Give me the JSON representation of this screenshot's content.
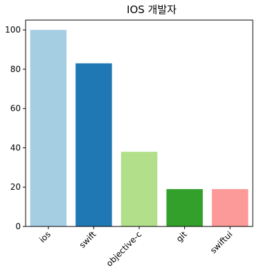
{
  "chart_data": {
    "type": "bar",
    "title": "IOS 개발자",
    "xlabel": "",
    "ylabel": "",
    "categories": [
      "ios",
      "swift",
      "objective-c",
      "git",
      "swiftui"
    ],
    "values": [
      100,
      83,
      38,
      19,
      19
    ],
    "colors": [
      "#a6cee3",
      "#1f78b4",
      "#b2df8a",
      "#33a02c",
      "#fb9a99"
    ],
    "ylim": [
      0,
      105
    ],
    "yticks": [
      0,
      20,
      40,
      60,
      80,
      100
    ],
    "grid": false,
    "legend": "none",
    "xtick_rotation": 45
  }
}
